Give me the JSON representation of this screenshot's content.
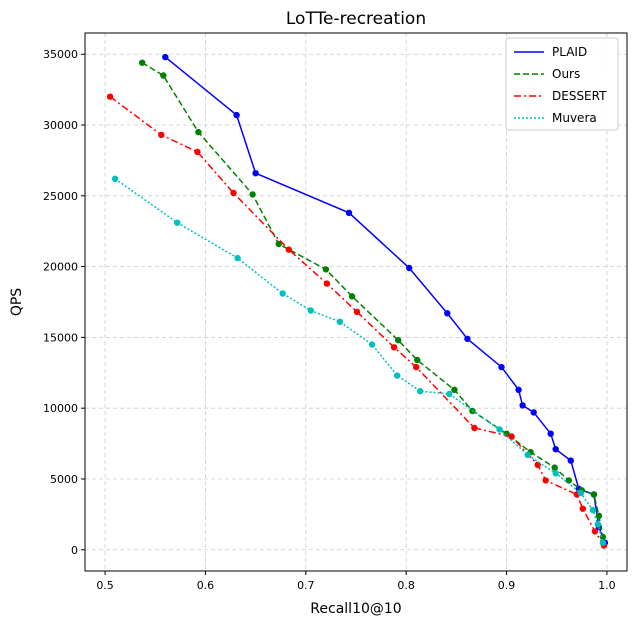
{
  "chart_data": {
    "type": "line",
    "title": "LoTTe-recreation",
    "xlabel": "Recall10@10",
    "ylabel": "QPS",
    "xlim": [
      0.48,
      1.02
    ],
    "ylim": [
      -1500,
      36500
    ],
    "xticks": [
      0.5,
      0.6,
      0.7,
      0.8,
      0.9,
      1.0
    ],
    "xtick_labels": [
      "0.5",
      "0.6",
      "0.7",
      "0.8",
      "0.9",
      "1.0"
    ],
    "yticks": [
      0,
      5000,
      10000,
      15000,
      20000,
      25000,
      30000,
      35000
    ],
    "ytick_labels": [
      "0",
      "5000",
      "10000",
      "15000",
      "20000",
      "25000",
      "30000",
      "35000"
    ],
    "grid": true,
    "legend_position": "top-right",
    "series": [
      {
        "name": "PLAID",
        "color": "#0000ff",
        "dash": "solid",
        "points": [
          [
            0.56,
            34800
          ],
          [
            0.631,
            30700
          ],
          [
            0.65,
            26600
          ],
          [
            0.743,
            23800
          ],
          [
            0.803,
            19900
          ],
          [
            0.841,
            16700
          ],
          [
            0.861,
            14900
          ],
          [
            0.895,
            12900
          ],
          [
            0.912,
            11300
          ],
          [
            0.916,
            10200
          ],
          [
            0.927,
            9700
          ],
          [
            0.944,
            8200
          ],
          [
            0.949,
            7100
          ],
          [
            0.964,
            6300
          ],
          [
            0.972,
            4300
          ],
          [
            0.987,
            3900
          ],
          [
            0.992,
            1600
          ],
          [
            0.998,
            500
          ]
        ]
      },
      {
        "name": "Ours",
        "color": "#008000",
        "dash": "dashed",
        "points": [
          [
            0.537,
            34400
          ],
          [
            0.558,
            33500
          ],
          [
            0.593,
            29500
          ],
          [
            0.647,
            25100
          ],
          [
            0.673,
            21600
          ],
          [
            0.72,
            19800
          ],
          [
            0.746,
            17900
          ],
          [
            0.792,
            14800
          ],
          [
            0.811,
            13400
          ],
          [
            0.848,
            11300
          ],
          [
            0.866,
            9800
          ],
          [
            0.9,
            8200
          ],
          [
            0.924,
            6900
          ],
          [
            0.948,
            5800
          ],
          [
            0.962,
            4900
          ],
          [
            0.975,
            4200
          ],
          [
            0.987,
            3900
          ],
          [
            0.992,
            2400
          ],
          [
            0.996,
            900
          ]
        ]
      },
      {
        "name": "DESSERT",
        "color": "#ff0000",
        "dash": "dashdot",
        "points": [
          [
            0.505,
            32000
          ],
          [
            0.556,
            29300
          ],
          [
            0.592,
            28100
          ],
          [
            0.628,
            25200
          ],
          [
            0.683,
            21200
          ],
          [
            0.721,
            18800
          ],
          [
            0.751,
            16800
          ],
          [
            0.788,
            14300
          ],
          [
            0.81,
            12900
          ],
          [
            0.868,
            8600
          ],
          [
            0.905,
            8000
          ],
          [
            0.931,
            6000
          ],
          [
            0.939,
            4900
          ],
          [
            0.97,
            3900
          ],
          [
            0.976,
            2900
          ],
          [
            0.988,
            1300
          ],
          [
            0.997,
            300
          ]
        ]
      },
      {
        "name": "Muvera",
        "color": "#00bfbf",
        "dash": "dotted",
        "points": [
          [
            0.51,
            26200
          ],
          [
            0.572,
            23100
          ],
          [
            0.632,
            20600
          ],
          [
            0.677,
            18100
          ],
          [
            0.705,
            16900
          ],
          [
            0.734,
            16100
          ],
          [
            0.766,
            14500
          ],
          [
            0.791,
            12300
          ],
          [
            0.814,
            11200
          ],
          [
            0.843,
            11000
          ],
          [
            0.893,
            8500
          ],
          [
            0.921,
            6700
          ],
          [
            0.949,
            5400
          ],
          [
            0.974,
            4000
          ],
          [
            0.986,
            2800
          ],
          [
            0.991,
            1800
          ],
          [
            0.996,
            500
          ]
        ]
      }
    ]
  }
}
